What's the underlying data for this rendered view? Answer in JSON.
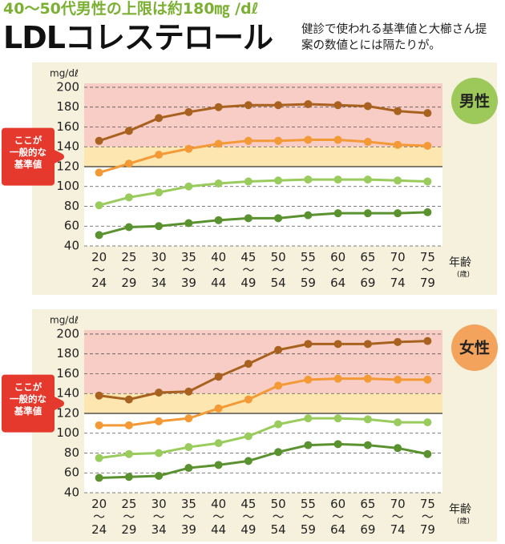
{
  "header": {
    "kicker": "40〜50代男性の上限は約180㎎ /dℓ",
    "title": "LDLコレステロール",
    "subtitle": "健診で使われる基準値と大櫛さん提案の数値とには隔たりが。"
  },
  "chart_data": [
    {
      "type": "line",
      "badge": "男性",
      "badge_color": "#9dc85a",
      "y_unit": "mg/dℓ",
      "x_label": "年齢",
      "x_unit": "(歳)",
      "callout": "ここが\n一般的な\n基準値",
      "categories": [
        "20\n〜\n24",
        "25\n〜\n29",
        "30\n〜\n34",
        "35\n〜\n39",
        "40\n〜\n44",
        "45\n〜\n49",
        "50\n〜\n54",
        "55\n〜\n59",
        "60\n〜\n64",
        "65\n〜\n69",
        "70\n〜\n74",
        "75\n〜\n79"
      ],
      "series": [
        {
          "color": "#a8611f",
          "values": [
            146,
            156,
            169,
            175,
            180,
            182,
            182,
            183,
            182,
            181,
            176,
            174
          ]
        },
        {
          "color": "#f39a36",
          "values": [
            114,
            123,
            132,
            138,
            143,
            146,
            146,
            147,
            147,
            145,
            142,
            141
          ]
        },
        {
          "color": "#99cb5d",
          "values": [
            81,
            89,
            94,
            100,
            103,
            105,
            106,
            107,
            107,
            107,
            106,
            105
          ]
        },
        {
          "color": "#5b9230",
          "values": [
            51,
            59,
            60,
            63,
            66,
            68,
            68,
            71,
            73,
            73,
            73,
            74
          ]
        }
      ],
      "ylim": [
        40,
        204
      ],
      "yticks": [
        40,
        60,
        80,
        100,
        120,
        140,
        160,
        180,
        200
      ],
      "reference_range": [
        120,
        140
      ],
      "reference_color": "#fde6b0",
      "high_color": "#f8cdc6",
      "grid": true
    },
    {
      "type": "line",
      "badge": "女性",
      "badge_color": "#f4a35c",
      "y_unit": "mg/dℓ",
      "x_label": "年齢",
      "x_unit": "(歳)",
      "callout": "ここが\n一般的な\n基準値",
      "categories": [
        "20\n〜\n24",
        "25\n〜\n29",
        "30\n〜\n34",
        "35\n〜\n39",
        "40\n〜\n44",
        "45\n〜\n49",
        "50\n〜\n54",
        "55\n〜\n59",
        "60\n〜\n64",
        "65\n〜\n69",
        "70\n〜\n74",
        "75\n〜\n79"
      ],
      "series": [
        {
          "color": "#a8611f",
          "values": [
            138,
            134,
            141,
            142,
            157,
            170,
            184,
            190,
            190,
            190,
            192,
            193
          ]
        },
        {
          "color": "#f39a36",
          "values": [
            108,
            108,
            112,
            115,
            125,
            134,
            148,
            154,
            155,
            155,
            154,
            154
          ]
        },
        {
          "color": "#99cb5d",
          "values": [
            75,
            79,
            80,
            86,
            90,
            97,
            109,
            115,
            115,
            114,
            111,
            111
          ]
        },
        {
          "color": "#5b9230",
          "values": [
            55,
            56,
            57,
            65,
            68,
            72,
            81,
            88,
            89,
            88,
            85,
            79
          ]
        }
      ],
      "ylim": [
        40,
        204
      ],
      "yticks": [
        40,
        60,
        80,
        100,
        120,
        140,
        160,
        180,
        200
      ],
      "reference_range": [
        120,
        140
      ],
      "reference_color": "#fde6b0",
      "high_color": "#f8cdc6",
      "grid": true
    }
  ]
}
